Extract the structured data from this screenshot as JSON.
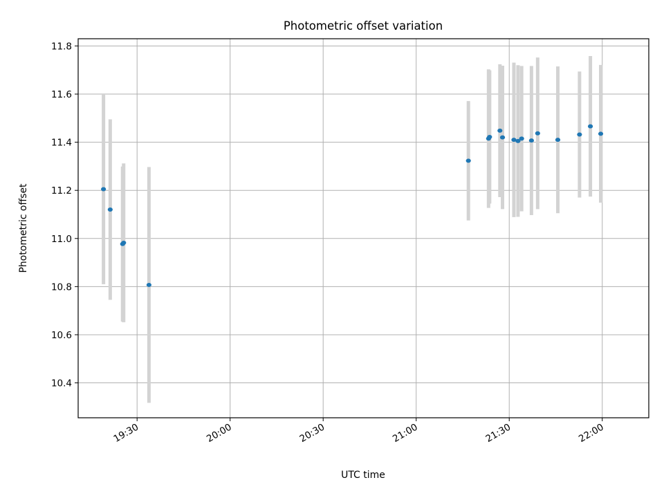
{
  "chart_data": {
    "type": "scatter",
    "title": "Photometric offset variation",
    "xlabel": "UTC time",
    "ylabel": "Photometric offset",
    "x_is_time": true,
    "xlim": [
      "19:11",
      "22:15"
    ],
    "ylim": [
      10.255,
      11.83
    ],
    "xticks": [
      "19:30",
      "20:00",
      "20:30",
      "21:00",
      "21:30",
      "22:00"
    ],
    "yticks": [
      "10.4",
      "10.6",
      "10.8",
      "11.0",
      "11.2",
      "11.4",
      "11.6",
      "11.8"
    ],
    "grid": true,
    "marker_color": "#1f77b4",
    "errorbar_color": "#d3d3d3",
    "points": [
      {
        "time": "19:19:10",
        "value": 11.205,
        "error": 0.395
      },
      {
        "time": "19:21:20",
        "value": 11.12,
        "error": 0.375
      },
      {
        "time": "19:25:20",
        "value": 10.977,
        "error": 0.322
      },
      {
        "time": "19:25:40",
        "value": 10.982,
        "error": 0.33
      },
      {
        "time": "19:33:50",
        "value": 10.807,
        "error": 0.49
      },
      {
        "time": "21:16:50",
        "value": 11.323,
        "error": 0.248
      },
      {
        "time": "21:23:20",
        "value": 11.415,
        "error": 0.288
      },
      {
        "time": "21:23:40",
        "value": 11.422,
        "error": 0.277
      },
      {
        "time": "21:27:00",
        "value": 11.448,
        "error": 0.276
      },
      {
        "time": "21:27:50",
        "value": 11.42,
        "error": 0.298
      },
      {
        "time": "21:31:30",
        "value": 11.41,
        "error": 0.321
      },
      {
        "time": "21:32:50",
        "value": 11.405,
        "error": 0.315
      },
      {
        "time": "21:34:00",
        "value": 11.415,
        "error": 0.302
      },
      {
        "time": "21:37:10",
        "value": 11.407,
        "error": 0.31
      },
      {
        "time": "21:39:10",
        "value": 11.437,
        "error": 0.315
      },
      {
        "time": "21:45:40",
        "value": 11.41,
        "error": 0.305
      },
      {
        "time": "21:52:40",
        "value": 11.432,
        "error": 0.262
      },
      {
        "time": "21:56:10",
        "value": 11.466,
        "error": 0.292
      },
      {
        "time": "21:59:30",
        "value": 11.435,
        "error": 0.286
      }
    ]
  }
}
